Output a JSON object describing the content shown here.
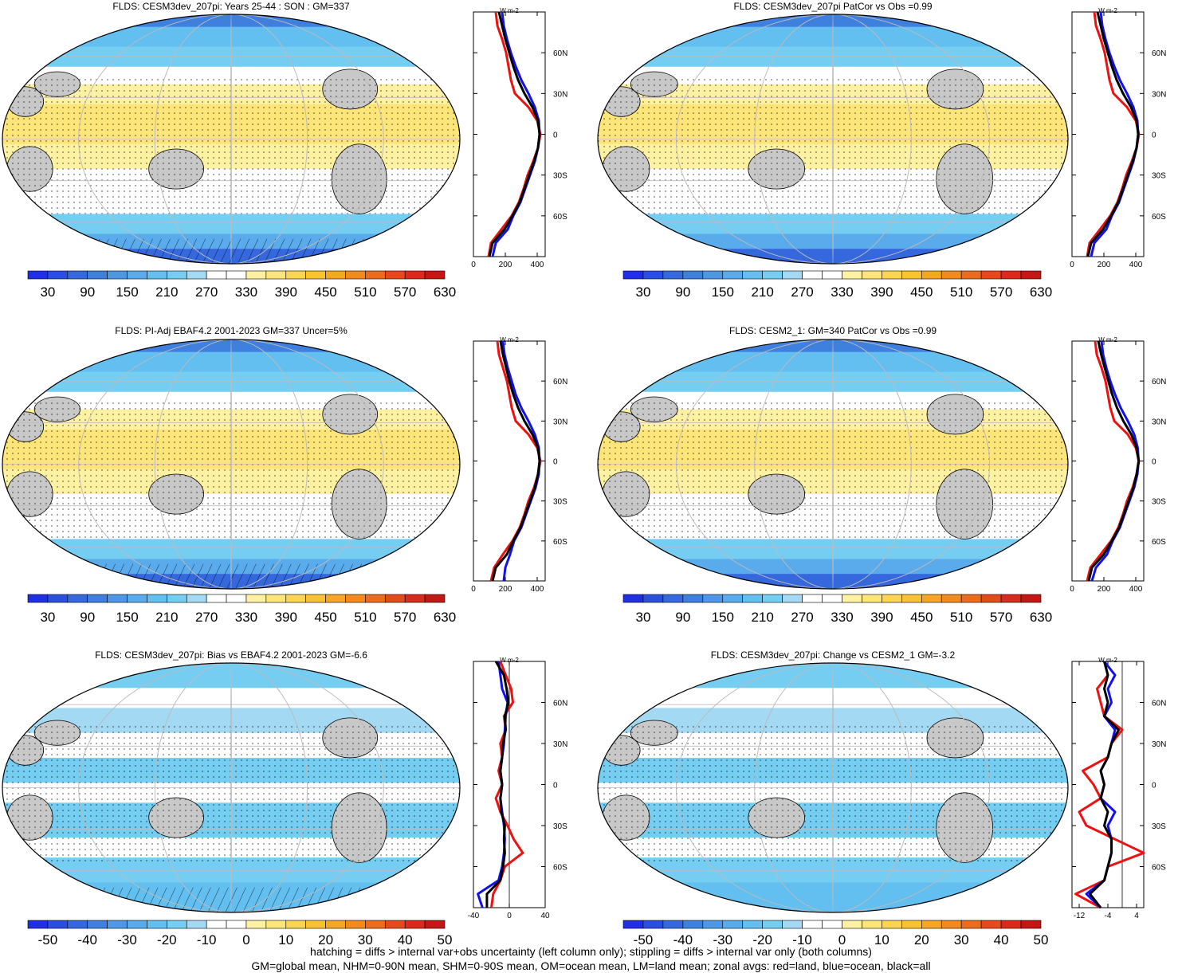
{
  "palette": {
    "abs": [
      "#1f2fe6",
      "#2a4fe0",
      "#3568dc",
      "#3f7fdd",
      "#4d97e4",
      "#5aabeb",
      "#62bff0",
      "#76cdf2",
      "#a3d9f3",
      "#ffffff",
      "#ffffff",
      "#fff1a2",
      "#fde57a",
      "#fbd451",
      "#f8c231",
      "#f5a623",
      "#f28a1d",
      "#ec6b1c",
      "#e54a1c",
      "#db2a1c",
      "#c41715"
    ],
    "diff": [
      "#1f2fe6",
      "#2a4fe0",
      "#3568dc",
      "#3f7fdd",
      "#4d97e4",
      "#5aabeb",
      "#62bff0",
      "#76cdf2",
      "#a3d9f3",
      "#ffffff",
      "#ffffff",
      "#fff1a2",
      "#fde57a",
      "#fbd451",
      "#f8c231",
      "#f5a623",
      "#f28a1d",
      "#ec6b1c",
      "#e54a1c",
      "#db2a1c",
      "#c41715"
    ],
    "land": "#c8c8c8",
    "zonal_land": "#ee1111",
    "zonal_ocean": "#1111ee",
    "zonal_all": "#000000"
  },
  "colorbars": {
    "abs_labels": [
      "30",
      "90",
      "150",
      "210",
      "270",
      "330",
      "390",
      "450",
      "510",
      "570",
      "630"
    ],
    "diff_labels": [
      "-50",
      "-40",
      "-30",
      "-20",
      "-10",
      "0",
      "10",
      "20",
      "30",
      "40",
      "50"
    ]
  },
  "chart_data": [
    {
      "type": "heatmap",
      "title": "FLDS: CESM3dev_207pi: Years 25-44 : SON : GM=337",
      "colorbar": "abs",
      "zonal": {
        "type": "line",
        "xticks": [
          "0",
          "200",
          "400"
        ],
        "xlim": [
          0,
          450
        ],
        "ytick_labels": [
          "60N",
          "30N",
          "0",
          "30S",
          "60S"
        ],
        "unit_label": "W m-2",
        "lat": [
          -90,
          -80,
          -70,
          -60,
          -50,
          -40,
          -30,
          -20,
          -10,
          0,
          10,
          20,
          30,
          40,
          50,
          60,
          70,
          80,
          90
        ],
        "series": [
          {
            "key": "land",
            "color": "#ee1111",
            "values": [
              95,
              110,
              175,
              240,
              285,
              315,
              340,
              375,
              405,
              420,
              400,
              345,
              260,
              235,
              220,
              205,
              180,
              150,
              140
            ]
          },
          {
            "key": "ocean",
            "color": "#1111ee",
            "values": [
              120,
              140,
              215,
              250,
              295,
              325,
              355,
              385,
              405,
              415,
              410,
              385,
              345,
              300,
              265,
              235,
              210,
              190,
              180
            ]
          },
          {
            "key": "all",
            "color": "#000000",
            "values": [
              100,
              120,
              195,
              245,
              290,
              320,
              350,
              380,
              405,
              415,
              405,
              370,
              320,
              280,
              250,
              225,
              200,
              180,
              160
            ]
          }
        ]
      }
    },
    {
      "type": "heatmap",
      "title": "FLDS: CESM3dev_207pi PatCor vs Obs =0.99",
      "colorbar": "abs",
      "zonal": {
        "type": "line",
        "xticks": [
          "0",
          "200",
          "400"
        ],
        "xlim": [
          0,
          450
        ],
        "ytick_labels": [
          "60N",
          "30N",
          "0",
          "30S",
          "60S"
        ],
        "unit_label": "W m-2",
        "lat": [
          -90,
          -80,
          -70,
          -60,
          -50,
          -40,
          -30,
          -20,
          -10,
          0,
          10,
          20,
          30,
          40,
          50,
          60,
          70,
          80,
          90
        ],
        "series": [
          {
            "key": "land",
            "color": "#ee1111",
            "values": [
              95,
              110,
              175,
              240,
              285,
              315,
              340,
              375,
              405,
              420,
              400,
              345,
              260,
              235,
              220,
              205,
              180,
              150,
              140
            ]
          },
          {
            "key": "ocean",
            "color": "#1111ee",
            "values": [
              120,
              140,
              215,
              250,
              295,
              325,
              355,
              385,
              405,
              415,
              410,
              385,
              345,
              300,
              265,
              235,
              210,
              190,
              180
            ]
          },
          {
            "key": "all",
            "color": "#000000",
            "values": [
              100,
              120,
              195,
              245,
              290,
              320,
              350,
              380,
              405,
              415,
              405,
              370,
              320,
              280,
              250,
              225,
              200,
              180,
              160
            ]
          }
        ]
      }
    },
    {
      "type": "heatmap",
      "title": "FLDS: PI-Adj EBAF4.2 2001-2023 GM=337 Uncer=5%",
      "colorbar": "abs",
      "zonal": {
        "type": "line",
        "xticks": [
          "0",
          "200",
          "400"
        ],
        "xlim": [
          0,
          450
        ],
        "ytick_labels": [
          "60N",
          "30N",
          "0",
          "30S",
          "60S"
        ],
        "unit_label": "W m-2",
        "lat": [
          -90,
          -80,
          -70,
          -60,
          -50,
          -40,
          -30,
          -20,
          -10,
          0,
          10,
          20,
          30,
          40,
          50,
          60,
          70,
          80,
          90
        ],
        "series": [
          {
            "key": "land",
            "color": "#ee1111",
            "values": [
              110,
              130,
              185,
              245,
              290,
              320,
              345,
              380,
              405,
              420,
              400,
              345,
              265,
              240,
              225,
              210,
              185,
              160,
              150
            ]
          },
          {
            "key": "ocean",
            "color": "#1111ee",
            "values": [
              190,
              200,
              230,
              255,
              300,
              330,
              360,
              390,
              410,
              415,
              410,
              385,
              345,
              300,
              265,
              240,
              215,
              195,
              185
            ]
          },
          {
            "key": "all",
            "color": "#000000",
            "values": [
              120,
              140,
              210,
              250,
              295,
              325,
              355,
              385,
              405,
              415,
              405,
              370,
              320,
              280,
              250,
              225,
              205,
              185,
              170
            ]
          }
        ]
      }
    },
    {
      "type": "heatmap",
      "title": "FLDS: CESM2_1: GM=340 PatCor vs Obs =0.99",
      "colorbar": "abs",
      "zonal": {
        "type": "line",
        "xticks": [
          "0",
          "200",
          "400"
        ],
        "xlim": [
          0,
          450
        ],
        "ytick_labels": [
          "60N",
          "30N",
          "0",
          "30S",
          "60S"
        ],
        "unit_label": "W m-2",
        "lat": [
          -90,
          -80,
          -70,
          -60,
          -50,
          -40,
          -30,
          -20,
          -10,
          0,
          10,
          20,
          30,
          40,
          50,
          60,
          70,
          80,
          90
        ],
        "series": [
          {
            "key": "land",
            "color": "#ee1111",
            "values": [
              95,
              115,
              180,
              245,
              290,
              320,
              345,
              380,
              405,
              420,
              400,
              350,
              265,
              240,
              225,
              210,
              185,
              155,
              145
            ]
          },
          {
            "key": "ocean",
            "color": "#1111ee",
            "values": [
              125,
              150,
              220,
              255,
              300,
              330,
              360,
              390,
              410,
              418,
              412,
              390,
              350,
              305,
              270,
              240,
              215,
              195,
              185
            ]
          },
          {
            "key": "all",
            "color": "#000000",
            "values": [
              105,
              125,
              200,
              250,
              295,
              325,
              355,
              385,
              405,
              418,
              405,
              372,
              322,
              282,
              252,
              228,
              205,
              183,
              165
            ]
          }
        ]
      }
    },
    {
      "type": "heatmap",
      "title": "FLDS: CESM3dev_207pi: Bias vs EBAF4.2 2001-2023  GM=-6.6",
      "colorbar": "diff",
      "zonal": {
        "type": "line",
        "xticks": [
          "-40",
          "0",
          "40"
        ],
        "xlim": [
          -40,
          40
        ],
        "ytick_labels": [
          "60N",
          "30N",
          "0",
          "30S",
          "60S"
        ],
        "unit_label": "W m-2",
        "lat": [
          -90,
          -80,
          -70,
          -60,
          -50,
          -40,
          -30,
          -20,
          -10,
          0,
          10,
          20,
          30,
          40,
          50,
          60,
          70,
          80,
          90
        ],
        "series": [
          {
            "key": "land",
            "color": "#ee1111",
            "values": [
              -20,
              -18,
              -10,
              -5,
              15,
              5,
              -2,
              -10,
              -15,
              -8,
              -12,
              -8,
              -10,
              -4,
              -6,
              4,
              2,
              -4,
              -10
            ]
          },
          {
            "key": "ocean",
            "color": "#1111ee",
            "values": [
              -30,
              -35,
              -12,
              -8,
              -6,
              -5,
              -6,
              -8,
              -10,
              -8,
              -10,
              -8,
              -6,
              -5,
              -4,
              -2,
              -8,
              -10,
              -12
            ]
          },
          {
            "key": "all",
            "color": "#000000",
            "values": [
              -25,
              -25,
              -10,
              -7,
              -5,
              -6,
              -5,
              -9,
              -10,
              -8,
              -10,
              -8,
              -7,
              -4,
              -5,
              -1,
              -3,
              -6,
              -15
            ]
          }
        ]
      }
    },
    {
      "type": "heatmap",
      "title": "FLDS: CESM3dev_207pi: Change vs CESM2_1 GM=-3.2",
      "colorbar": "diff",
      "zonal": {
        "type": "line",
        "xticks": [
          "-12",
          "-4",
          "4"
        ],
        "xlim": [
          -14,
          6
        ],
        "ytick_labels": [
          "60N",
          "30N",
          "0",
          "30S",
          "60S"
        ],
        "unit_label": "W m-2",
        "lat": [
          -90,
          -80,
          -70,
          -60,
          -50,
          -40,
          -30,
          -20,
          -10,
          0,
          10,
          20,
          30,
          40,
          50,
          60,
          70,
          80,
          90
        ],
        "series": [
          {
            "key": "land",
            "color": "#ee1111",
            "values": [
              -6,
              -13,
              -5,
              -4,
              6,
              -2,
              -10,
              -12,
              -6,
              -8,
              -11,
              -4,
              -3,
              0,
              -5,
              -6,
              -7,
              -4,
              -5
            ]
          },
          {
            "key": "ocean",
            "color": "#1111ee",
            "values": [
              -6,
              -10,
              -5,
              -4,
              -3,
              -3,
              -4,
              -2,
              -6,
              -5,
              -6,
              -4,
              -3,
              -2,
              -5,
              -3,
              -4,
              -2,
              -5
            ]
          },
          {
            "key": "all",
            "color": "#000000",
            "values": [
              -6,
              -9,
              -5,
              -4,
              -3,
              -3,
              -5,
              -4,
              -6,
              -5,
              -6,
              -4,
              -3,
              -1,
              -5,
              -4,
              -5,
              -4,
              -5
            ]
          }
        ]
      }
    }
  ],
  "footer": {
    "line1": "hatching = diffs > internal var+obs uncertainty (left column only); stippling = diffs > internal var only (both columns)",
    "line2": "GM=global mean, NHM=0-90N mean, SHM=0-90S mean, OM=ocean mean, LM=land mean; zonal avgs: red=land, blue=ocean, black=all"
  }
}
